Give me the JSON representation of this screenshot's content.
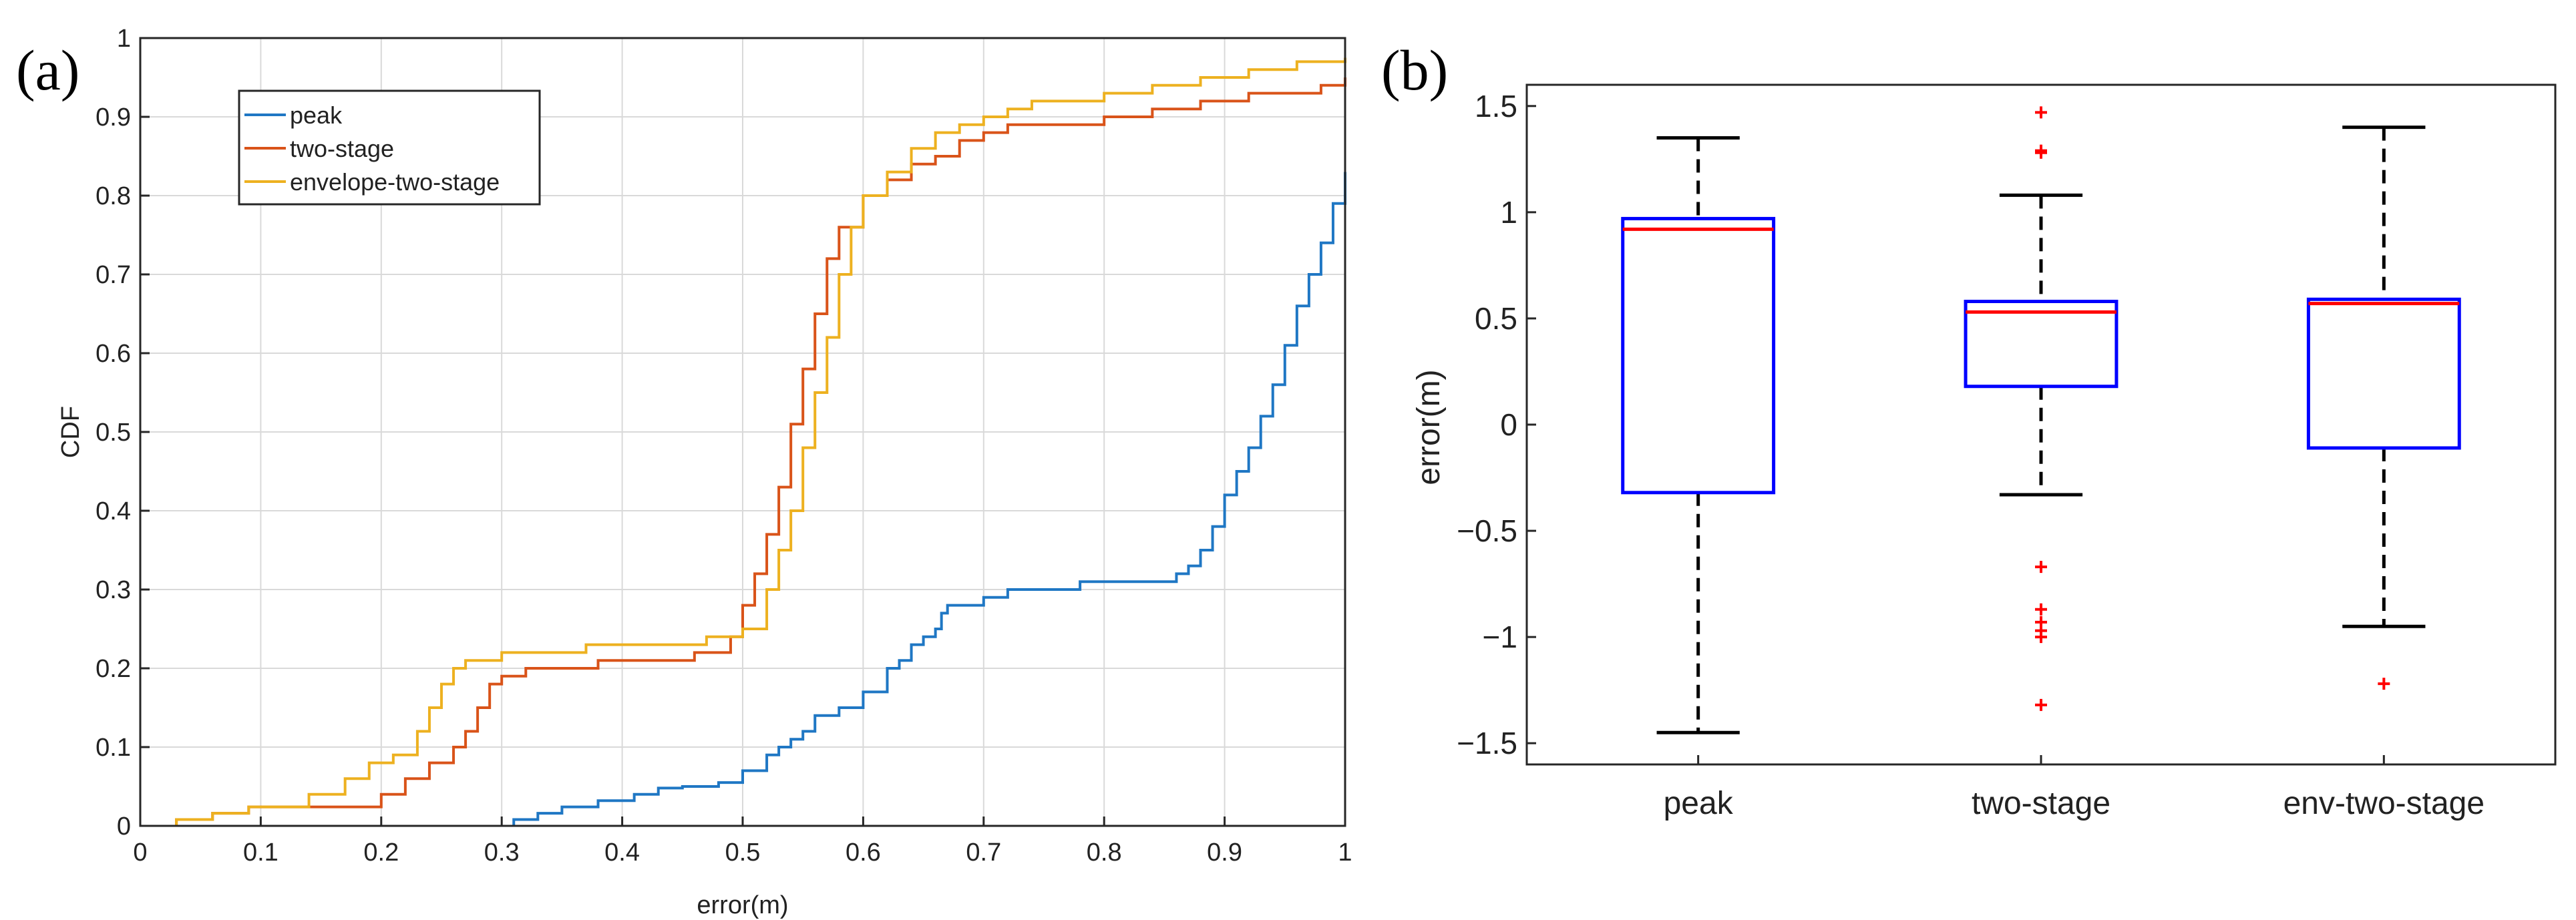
{
  "chart_data": [
    {
      "panel": "(a)",
      "type": "line",
      "xlabel": "error(m)",
      "ylabel": "CDF",
      "xlim": [
        0,
        1
      ],
      "ylim": [
        0,
        1
      ],
      "grid": true,
      "legend_position": "top-left",
      "xticks": [
        "0",
        "0.1",
        "0.2",
        "0.3",
        "0.4",
        "0.5",
        "0.6",
        "0.7",
        "0.8",
        "0.9",
        "1"
      ],
      "yticks": [
        "0",
        "0.1",
        "0.2",
        "0.3",
        "0.4",
        "0.5",
        "0.6",
        "0.7",
        "0.8",
        "0.9",
        "1"
      ],
      "series": [
        {
          "name": "peak",
          "color": "#1f77c4",
          "x": [
            0.31,
            0.33,
            0.35,
            0.38,
            0.41,
            0.43,
            0.45,
            0.48,
            0.5,
            0.52,
            0.53,
            0.54,
            0.55,
            0.56,
            0.58,
            0.6,
            0.62,
            0.63,
            0.64,
            0.65,
            0.66,
            0.665,
            0.67,
            0.68,
            0.69,
            0.7,
            0.72,
            0.75,
            0.78,
            0.8,
            0.82,
            0.84,
            0.86,
            0.87,
            0.88,
            0.89,
            0.9,
            0.91,
            0.92,
            0.93,
            0.94,
            0.95,
            0.96,
            0.97,
            0.98,
            0.99,
            1.0
          ],
          "y": [
            0.008,
            0.016,
            0.024,
            0.032,
            0.04,
            0.048,
            0.05,
            0.055,
            0.07,
            0.09,
            0.1,
            0.11,
            0.12,
            0.14,
            0.15,
            0.17,
            0.2,
            0.21,
            0.23,
            0.24,
            0.25,
            0.27,
            0.28,
            0.28,
            0.28,
            0.29,
            0.3,
            0.3,
            0.31,
            0.31,
            0.31,
            0.31,
            0.32,
            0.33,
            0.35,
            0.38,
            0.42,
            0.45,
            0.48,
            0.52,
            0.56,
            0.61,
            0.66,
            0.7,
            0.74,
            0.79,
            0.83
          ]
        },
        {
          "name": "two-stage",
          "color": "#d95319",
          "x": [
            0.03,
            0.06,
            0.09,
            0.12,
            0.15,
            0.18,
            0.2,
            0.22,
            0.24,
            0.26,
            0.27,
            0.28,
            0.29,
            0.3,
            0.32,
            0.35,
            0.38,
            0.42,
            0.46,
            0.49,
            0.5,
            0.51,
            0.52,
            0.53,
            0.54,
            0.55,
            0.56,
            0.57,
            0.58,
            0.6,
            0.62,
            0.64,
            0.66,
            0.68,
            0.7,
            0.72,
            0.75,
            0.8,
            0.84,
            0.88,
            0.92,
            0.95,
            0.98,
            1.0
          ],
          "y": [
            0.008,
            0.016,
            0.024,
            0.024,
            0.024,
            0.024,
            0.04,
            0.06,
            0.08,
            0.1,
            0.12,
            0.15,
            0.18,
            0.19,
            0.2,
            0.2,
            0.21,
            0.21,
            0.22,
            0.24,
            0.28,
            0.32,
            0.37,
            0.43,
            0.51,
            0.58,
            0.65,
            0.72,
            0.76,
            0.8,
            0.82,
            0.84,
            0.85,
            0.87,
            0.88,
            0.89,
            0.89,
            0.9,
            0.91,
            0.92,
            0.93,
            0.93,
            0.94,
            0.95
          ]
        },
        {
          "name": "envelope-two-stage",
          "color": "#edb120",
          "x": [
            0.03,
            0.06,
            0.09,
            0.12,
            0.14,
            0.17,
            0.19,
            0.21,
            0.23,
            0.24,
            0.25,
            0.26,
            0.27,
            0.28,
            0.3,
            0.33,
            0.37,
            0.42,
            0.47,
            0.5,
            0.52,
            0.53,
            0.54,
            0.55,
            0.56,
            0.57,
            0.58,
            0.59,
            0.6,
            0.62,
            0.64,
            0.66,
            0.68,
            0.7,
            0.72,
            0.74,
            0.76,
            0.8,
            0.84,
            0.88,
            0.92,
            0.96,
            1.0
          ],
          "y": [
            0.008,
            0.016,
            0.024,
            0.024,
            0.04,
            0.06,
            0.08,
            0.09,
            0.12,
            0.15,
            0.18,
            0.2,
            0.21,
            0.21,
            0.22,
            0.22,
            0.23,
            0.23,
            0.24,
            0.25,
            0.3,
            0.35,
            0.4,
            0.48,
            0.55,
            0.62,
            0.7,
            0.76,
            0.8,
            0.83,
            0.86,
            0.88,
            0.89,
            0.9,
            0.91,
            0.92,
            0.92,
            0.93,
            0.94,
            0.95,
            0.96,
            0.97,
            0.975
          ]
        }
      ]
    },
    {
      "panel": "(b)",
      "type": "box",
      "ylabel": "error(m)",
      "ylim": [
        -1.6,
        1.6
      ],
      "grid": false,
      "yticks": [
        "-1.5",
        "-1",
        "-0.5",
        "0",
        "0.5",
        "1",
        "1.5"
      ],
      "categories": [
        "peak",
        "two-stage",
        "env-two-stage"
      ],
      "box_color": "#0000ff",
      "median_color": "#ff0000",
      "whisker_color": "#000000",
      "outlier_color": "#ff0000",
      "boxes": [
        {
          "name": "peak",
          "whisker_low": -1.45,
          "q1": -0.32,
          "median": 0.92,
          "q3": 0.97,
          "whisker_high": 1.35,
          "outliers": []
        },
        {
          "name": "two-stage",
          "whisker_low": -0.33,
          "q1": 0.18,
          "median": 0.53,
          "q3": 0.58,
          "whisker_high": 1.08,
          "outliers": [
            1.47,
            1.29,
            1.28,
            -0.67,
            -0.87,
            -0.93,
            -0.97,
            -1.0,
            -1.32
          ]
        },
        {
          "name": "env-two-stage",
          "whisker_low": -0.95,
          "q1": -0.11,
          "median": 0.57,
          "q3": 0.59,
          "whisker_high": 1.4,
          "outliers": [
            -1.22
          ]
        }
      ]
    }
  ]
}
